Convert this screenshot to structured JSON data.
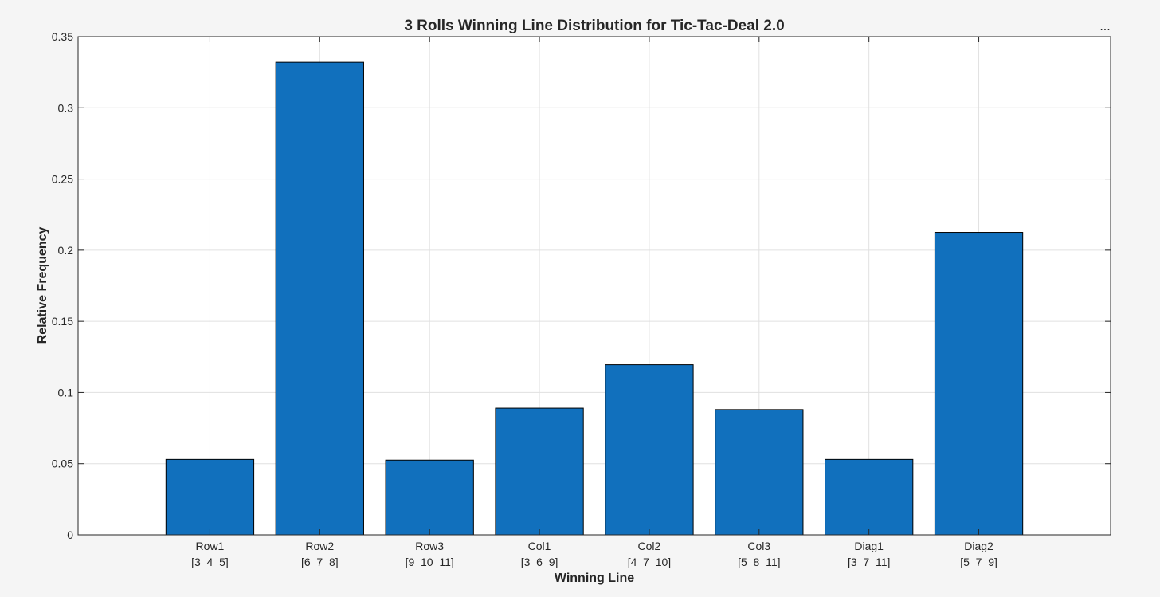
{
  "toolbar": {
    "more_label": "..."
  },
  "chart_data": {
    "type": "bar",
    "title": "3 Rolls Winning Line Distribution for Tic-Tac-Deal 2.0",
    "xlabel": "Winning Line",
    "ylabel": "Relative Frequency",
    "categories": [
      "Row1",
      "Row2",
      "Row3",
      "Col1",
      "Col2",
      "Col3",
      "Diag1",
      "Diag2"
    ],
    "category_sublabels": [
      "[3  4  5]",
      "[6  7  8]",
      "[9  10  11]",
      "[3  6  9]",
      "[4  7  10]",
      "[5  8  11]",
      "[3  7  11]",
      "[5  7  9]"
    ],
    "values": [
      0.053,
      0.332,
      0.0525,
      0.089,
      0.1195,
      0.088,
      0.053,
      0.2125
    ],
    "ylim": [
      0,
      0.35
    ],
    "yticks": [
      0,
      0.05,
      0.1,
      0.15,
      0.2,
      0.25,
      0.3,
      0.35
    ],
    "ytick_labels": [
      "0",
      "0.05",
      "0.1",
      "0.15",
      "0.2",
      "0.25",
      "0.3",
      "0.35"
    ],
    "xlim": [
      -0.2,
      9.2
    ],
    "grid": true,
    "bar_color": "#1170bd",
    "bar_edge_color": "#000000"
  }
}
